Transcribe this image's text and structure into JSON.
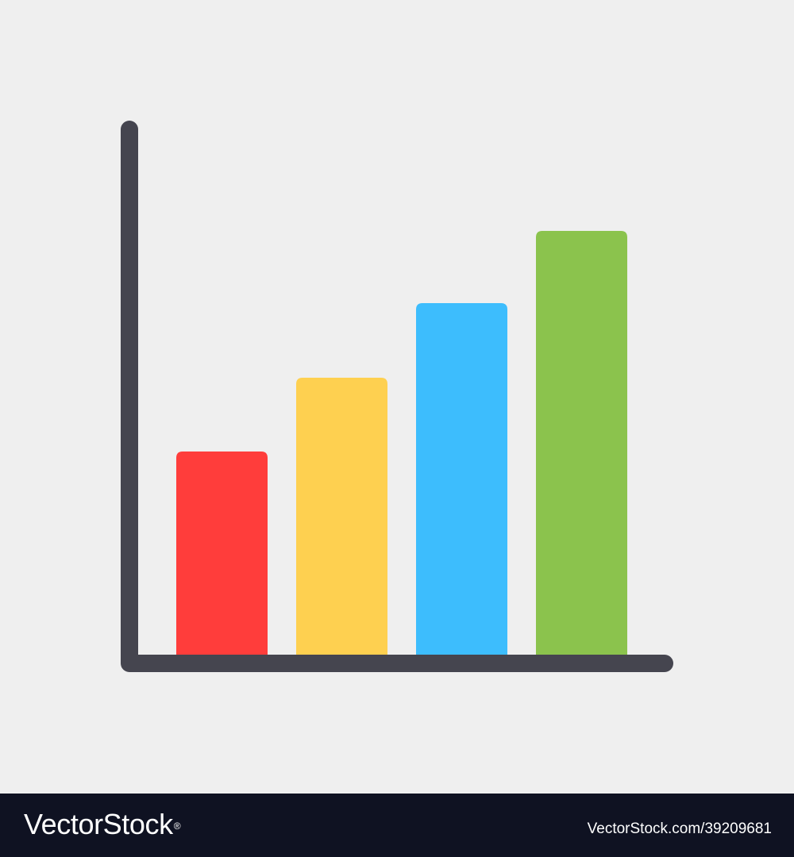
{
  "colors": {
    "background": "#efefef",
    "axis": "#45454f",
    "footer": "#0f1222",
    "footer_text": "#ffffff"
  },
  "icon": {
    "name": "bar-chart-icon",
    "bars": [
      {
        "level": 0.48,
        "color": "#ff3d3b"
      },
      {
        "level": 0.655,
        "color": "#fed050"
      },
      {
        "level": 0.83,
        "color": "#3dbdfd"
      },
      {
        "level": 1.0,
        "color": "#8bc34d"
      }
    ]
  },
  "footer": {
    "brand_name": "VectorStock",
    "registered_mark": "®",
    "image_id": "VectorStock.com/39209681"
  }
}
